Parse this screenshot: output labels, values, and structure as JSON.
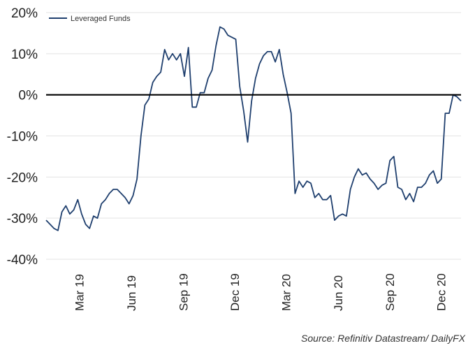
{
  "chart_data": {
    "type": "line",
    "title": "",
    "xlabel": "",
    "ylabel": "",
    "ylim": [
      -40,
      20
    ],
    "y_ticks": [
      20,
      10,
      0,
      -10,
      -20,
      -30,
      -40
    ],
    "y_tick_labels": [
      "20%",
      "10%",
      "0%",
      "-10%",
      "-20%",
      "-30%",
      "-40%"
    ],
    "x_tick_labels": [
      "Mar 19",
      "Jun 19",
      "Sep 19",
      "Dec 19",
      "Mar 20",
      "Jun 20",
      "Sep 20",
      "Dec 20"
    ],
    "x_tick_dates": [
      "2019-03-01",
      "2019-06-01",
      "2019-09-01",
      "2019-12-01",
      "2020-03-01",
      "2020-06-01",
      "2020-09-01",
      "2020-12-01"
    ],
    "zero_line": true,
    "grid": true,
    "legend_position": "top-left",
    "series": [
      {
        "name": "Leveraged Funds",
        "color": "#1f3f6e",
        "x": [
          "2019-01-01",
          "2019-01-08",
          "2019-01-15",
          "2019-01-22",
          "2019-01-29",
          "2019-02-05",
          "2019-02-12",
          "2019-02-19",
          "2019-02-26",
          "2019-03-05",
          "2019-03-12",
          "2019-03-19",
          "2019-03-26",
          "2019-04-02",
          "2019-04-09",
          "2019-04-16",
          "2019-04-23",
          "2019-04-30",
          "2019-05-07",
          "2019-05-14",
          "2019-05-21",
          "2019-05-28",
          "2019-06-04",
          "2019-06-11",
          "2019-06-18",
          "2019-06-25",
          "2019-07-02",
          "2019-07-09",
          "2019-07-16",
          "2019-07-23",
          "2019-07-30",
          "2019-08-06",
          "2019-08-13",
          "2019-08-20",
          "2019-08-27",
          "2019-09-03",
          "2019-09-10",
          "2019-09-17",
          "2019-09-24",
          "2019-10-01",
          "2019-10-08",
          "2019-10-15",
          "2019-10-22",
          "2019-10-29",
          "2019-11-05",
          "2019-11-12",
          "2019-11-19",
          "2019-11-26",
          "2019-12-03",
          "2019-12-10",
          "2019-12-17",
          "2019-12-24",
          "2019-12-31",
          "2020-01-07",
          "2020-01-14",
          "2020-01-21",
          "2020-01-28",
          "2020-02-04",
          "2020-02-11",
          "2020-02-18",
          "2020-02-25",
          "2020-03-03",
          "2020-03-10",
          "2020-03-17",
          "2020-03-24",
          "2020-03-31",
          "2020-04-07",
          "2020-04-14",
          "2020-04-21",
          "2020-04-28",
          "2020-05-05",
          "2020-05-12",
          "2020-05-19",
          "2020-05-26",
          "2020-06-02",
          "2020-06-09",
          "2020-06-16",
          "2020-06-23",
          "2020-06-30",
          "2020-07-07",
          "2020-07-14",
          "2020-07-21",
          "2020-07-28",
          "2020-08-04",
          "2020-08-11",
          "2020-08-18",
          "2020-08-25",
          "2020-09-01",
          "2020-09-08",
          "2020-09-15",
          "2020-09-22",
          "2020-09-29",
          "2020-10-06",
          "2020-10-13",
          "2020-10-20",
          "2020-10-27",
          "2020-11-03",
          "2020-11-10",
          "2020-11-17",
          "2020-11-24",
          "2020-12-01",
          "2020-12-08",
          "2020-12-15",
          "2020-12-22",
          "2020-12-29",
          "2021-01-05"
        ],
        "values": [
          -30.5,
          -31.5,
          -32.5,
          -33.0,
          -28.5,
          -27.0,
          -29.0,
          -28.0,
          -25.5,
          -29.0,
          -31.5,
          -32.5,
          -29.5,
          -30.0,
          -26.5,
          -25.5,
          -24.0,
          -23.0,
          -23.0,
          -24.0,
          -25.0,
          -26.5,
          -24.5,
          -20.5,
          -10.0,
          -2.5,
          -1.0,
          3.0,
          4.5,
          5.5,
          11.0,
          8.5,
          10.0,
          8.5,
          10.0,
          4.5,
          11.5,
          -3.0,
          -3.0,
          0.5,
          0.5,
          4.0,
          6.0,
          12.0,
          16.5,
          16.0,
          14.5,
          14.0,
          13.5,
          2.0,
          -4.0,
          -11.5,
          -1.5,
          4.0,
          7.5,
          9.5,
          10.5,
          10.5,
          8.0,
          11.0,
          5.0,
          0.5,
          -4.5,
          -24.0,
          -21.0,
          -22.5,
          -21.0,
          -21.5,
          -25.0,
          -24.0,
          -25.5,
          -25.5,
          -24.5,
          -30.5,
          -29.5,
          -29.0,
          -29.5,
          -23.0,
          -20.0,
          -18.0,
          -19.5,
          -19.0,
          -20.5,
          -21.5,
          -23.0,
          -22.0,
          -21.5,
          -16.0,
          -15.0,
          -22.5,
          -23.0,
          -25.5,
          -24.0,
          -26.0,
          -22.5,
          -22.5,
          -21.5,
          -19.5,
          -18.5,
          -21.5,
          -20.5,
          -4.5,
          -4.5,
          0.0,
          -0.5,
          -1.5
        ]
      }
    ]
  },
  "source_text": "Source: Refinitiv Datastream/ DailyFX"
}
